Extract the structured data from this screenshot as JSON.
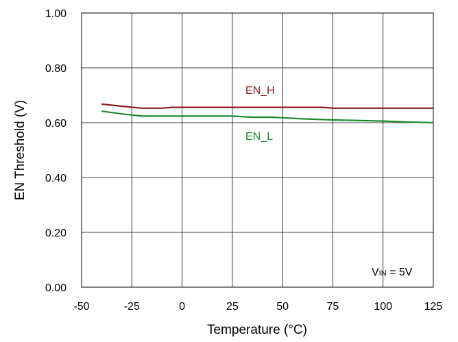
{
  "chart_data": {
    "type": "line",
    "title": "",
    "xlabel": "Temperature (°C)",
    "ylabel": "EN Threshold (V)",
    "xlim": [
      -50,
      125
    ],
    "ylim": [
      0,
      1.0
    ],
    "x_ticks": [
      "-50",
      "-25",
      "0",
      "25",
      "50",
      "75",
      "100",
      "125"
    ],
    "y_ticks": [
      "0.00",
      "0.20",
      "0.40",
      "0.60",
      "0.80",
      "1.00"
    ],
    "grid": true,
    "legend": "inline labels",
    "series": [
      {
        "name": "EN_H",
        "color": "#8B1A1A",
        "x": [
          -40,
          -30,
          -20,
          -10,
          -5,
          0,
          25,
          50,
          70,
          75,
          100,
          125
        ],
        "y": [
          0.668,
          0.66,
          0.653,
          0.653,
          0.656,
          0.656,
          0.656,
          0.656,
          0.656,
          0.653,
          0.653,
          0.653
        ]
      },
      {
        "name": "EN_L",
        "color": "#1A8A2E",
        "x": [
          -40,
          -30,
          -20,
          0,
          25,
          35,
          45,
          50,
          60,
          75,
          100,
          110,
          125
        ],
        "y": [
          0.642,
          0.632,
          0.624,
          0.624,
          0.624,
          0.62,
          0.62,
          0.618,
          0.614,
          0.61,
          0.606,
          0.603,
          0.6
        ]
      }
    ],
    "annotation": {
      "prefix": "V",
      "subscript": "IN",
      "suffix": " = 5V"
    }
  }
}
